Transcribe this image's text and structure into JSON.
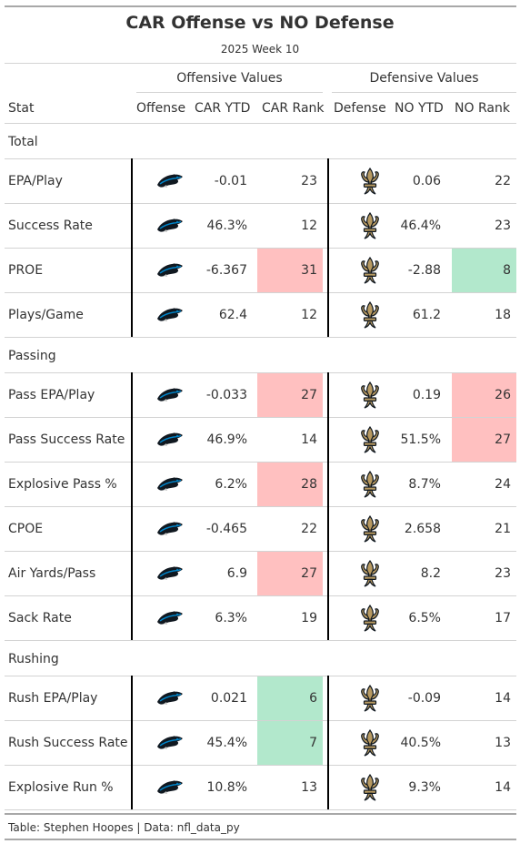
{
  "header": {
    "title": "CAR Offense vs NO Defense",
    "subtitle": "2025 Week 10",
    "spanner_offense": "Offensive Values",
    "spanner_defense": "Defensive Values"
  },
  "columns": {
    "stat": "Stat",
    "offense": "Offense",
    "off_ytd": "CAR YTD",
    "off_rank": "CAR Rank",
    "defense": "Defense",
    "def_ytd": "NO YTD",
    "def_rank": "NO Rank"
  },
  "colors": {
    "bad": "#ffc0c0",
    "good": "#b2e8cc",
    "panthers_blue": "#0085ca",
    "saints_gold": "#b89a61"
  },
  "icons": {
    "offense": "panthers-logo-icon",
    "defense": "saints-fleur-de-lis-icon"
  },
  "groups": [
    {
      "name": "Total",
      "rows": [
        {
          "stat": "EPA/Play",
          "off_ytd": "-0.01",
          "off_rank": "23",
          "def_ytd": "0.06",
          "def_rank": "22",
          "off_hl": "",
          "def_hl": ""
        },
        {
          "stat": "Success Rate",
          "off_ytd": "46.3%",
          "off_rank": "12",
          "def_ytd": "46.4%",
          "def_rank": "23",
          "off_hl": "",
          "def_hl": ""
        },
        {
          "stat": "PROE",
          "off_ytd": "-6.367",
          "off_rank": "31",
          "def_ytd": "-2.88",
          "def_rank": "8",
          "off_hl": "bad",
          "def_hl": "good"
        },
        {
          "stat": "Plays/Game",
          "off_ytd": "62.4",
          "off_rank": "12",
          "def_ytd": "61.2",
          "def_rank": "18",
          "off_hl": "",
          "def_hl": ""
        }
      ]
    },
    {
      "name": "Passing",
      "rows": [
        {
          "stat": "Pass EPA/Play",
          "off_ytd": "-0.033",
          "off_rank": "27",
          "def_ytd": "0.19",
          "def_rank": "26",
          "off_hl": "bad",
          "def_hl": "bad"
        },
        {
          "stat": "Pass Success Rate",
          "off_ytd": "46.9%",
          "off_rank": "14",
          "def_ytd": "51.5%",
          "def_rank": "27",
          "off_hl": "",
          "def_hl": "bad"
        },
        {
          "stat": "Explosive Pass %",
          "off_ytd": "6.2%",
          "off_rank": "28",
          "def_ytd": "8.7%",
          "def_rank": "24",
          "off_hl": "bad",
          "def_hl": ""
        },
        {
          "stat": "CPOE",
          "off_ytd": "-0.465",
          "off_rank": "22",
          "def_ytd": "2.658",
          "def_rank": "21",
          "off_hl": "",
          "def_hl": ""
        },
        {
          "stat": "Air Yards/Pass",
          "off_ytd": "6.9",
          "off_rank": "27",
          "def_ytd": "8.2",
          "def_rank": "23",
          "off_hl": "bad",
          "def_hl": ""
        },
        {
          "stat": "Sack Rate",
          "off_ytd": "6.3%",
          "off_rank": "19",
          "def_ytd": "6.5%",
          "def_rank": "17",
          "off_hl": "",
          "def_hl": ""
        }
      ]
    },
    {
      "name": "Rushing",
      "rows": [
        {
          "stat": "Rush EPA/Play",
          "off_ytd": "0.021",
          "off_rank": "6",
          "def_ytd": "-0.09",
          "def_rank": "14",
          "off_hl": "good",
          "def_hl": ""
        },
        {
          "stat": "Rush Success Rate",
          "off_ytd": "45.4%",
          "off_rank": "7",
          "def_ytd": "40.5%",
          "def_rank": "13",
          "off_hl": "good",
          "def_hl": ""
        },
        {
          "stat": "Explosive Run %",
          "off_ytd": "10.8%",
          "off_rank": "13",
          "def_ytd": "9.3%",
          "def_rank": "14",
          "off_hl": "",
          "def_hl": ""
        }
      ]
    }
  ],
  "footer": {
    "source": "Table: Stephen Hoopes | Data: nfl_data_py"
  }
}
